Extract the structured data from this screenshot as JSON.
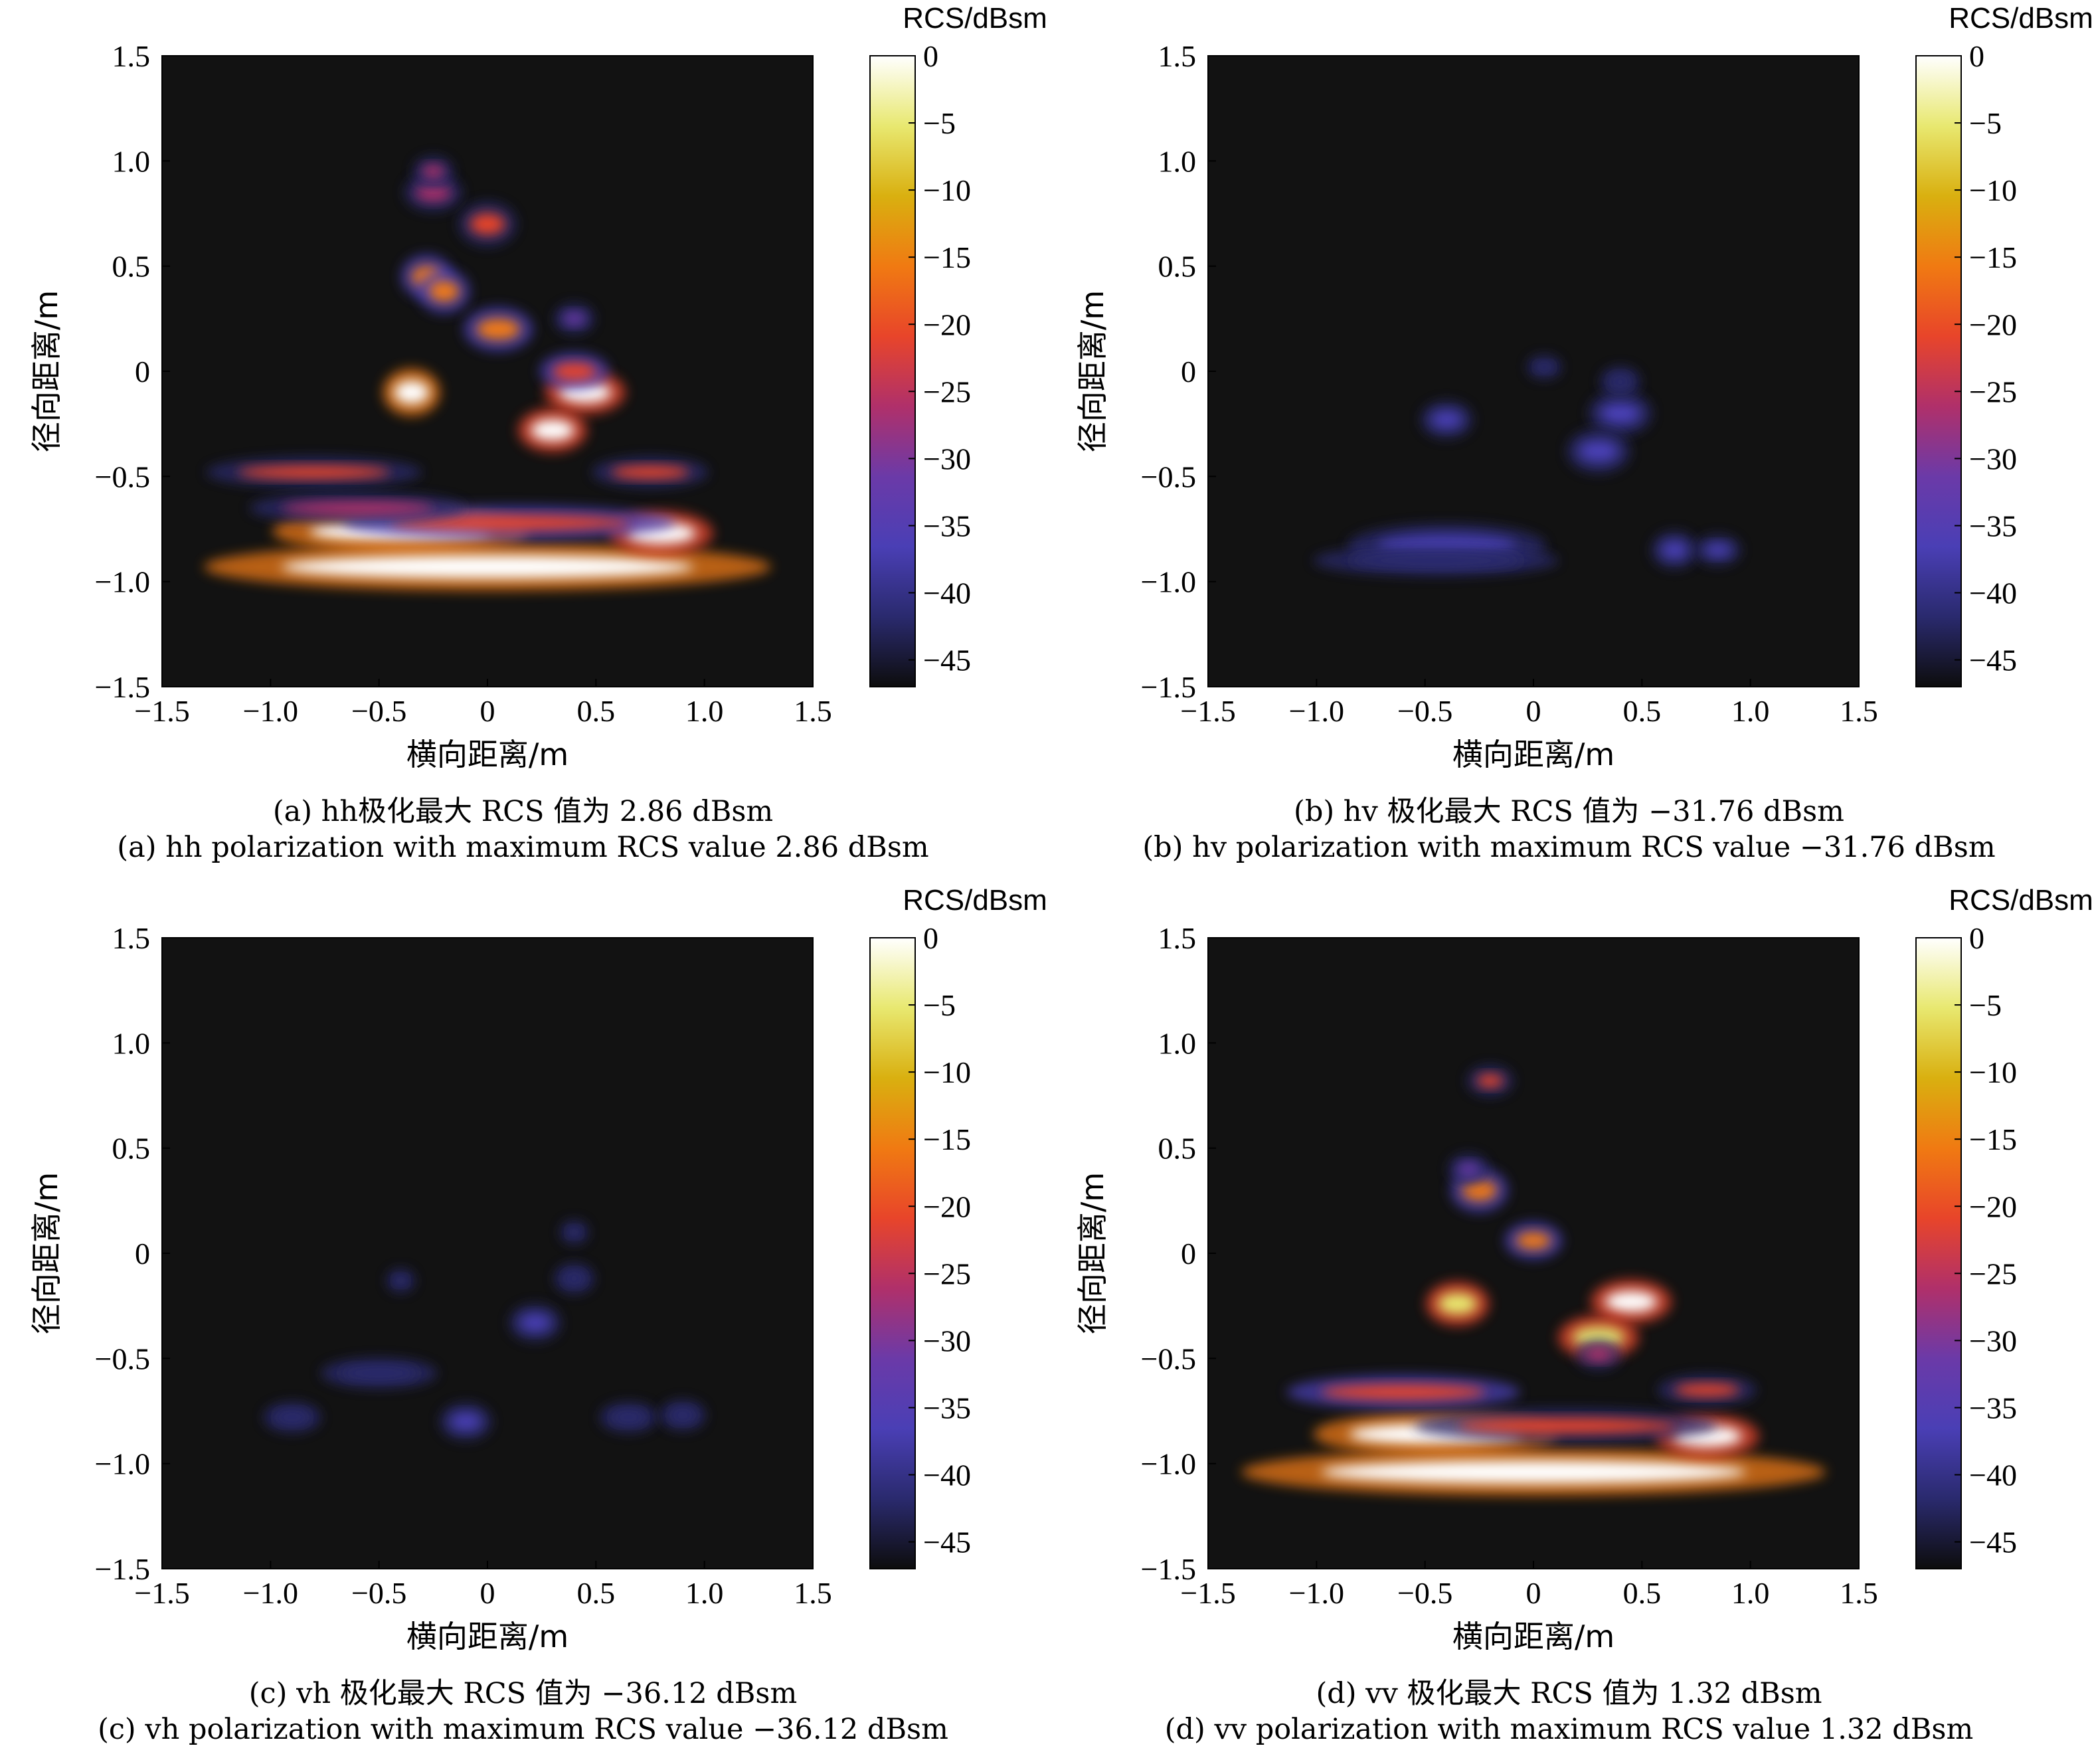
{
  "colors": {
    "background": "#121212",
    "colormap": [
      "#0d0d0d",
      "#2a2a6e",
      "#4a3fb5",
      "#6b3aa8",
      "#b0306a",
      "#e8452a",
      "#f07a12",
      "#d9b010",
      "#e8e870",
      "#ffffff"
    ]
  },
  "chart_data": [
    {
      "id": "a",
      "type": "heatmap",
      "caption_cn": "(a) hh极化最大 RCS 值为 2.86 dBsm",
      "caption_en": "(a) hh polarization with maximum RCS value 2.86 dBsm",
      "xlabel": "横向距离/m",
      "ylabel": "径向距离/m",
      "colorbar_label": "RCS/dBsm",
      "xlim": [
        -1.5,
        1.5
      ],
      "ylim": [
        -1.5,
        1.5
      ],
      "clim": [
        -47,
        0
      ],
      "x_ticks": [
        -1.5,
        -1.0,
        -0.5,
        0,
        0.5,
        1.0,
        1.5
      ],
      "x_tick_labels": [
        "−1.5",
        "−1.0",
        "−0.5",
        "0",
        "0.5",
        "1.0",
        "1.5"
      ],
      "y_ticks": [
        1.5,
        1.0,
        0.5,
        0,
        -0.5,
        -1.0,
        -1.5
      ],
      "y_tick_labels": [
        "1.5",
        "1.0",
        "0.5",
        "0",
        "−0.5",
        "−1.0",
        "−1.5"
      ],
      "colorbar_ticks": [
        0,
        -5,
        -10,
        -15,
        -20,
        -25,
        -30,
        -35,
        -40,
        -45
      ],
      "colorbar_tick_labels": [
        "0",
        "−5",
        "−10",
        "−15",
        "−20",
        "−25",
        "−30",
        "−35",
        "−40",
        "−45"
      ],
      "max_rcs_dbsm": 2.86,
      "scatterers": [
        {
          "x": -0.4,
          "y": -0.76,
          "rx": 0.42,
          "ry": 0.05,
          "db": 0
        },
        {
          "x": 0.0,
          "y": -0.93,
          "rx": 0.95,
          "ry": 0.055,
          "db": -2
        },
        {
          "x": 0.8,
          "y": -0.77,
          "rx": 0.16,
          "ry": 0.05,
          "db": -4
        },
        {
          "x": 0.1,
          "y": -0.72,
          "rx": 0.55,
          "ry": 0.035,
          "db": -22
        },
        {
          "x": -0.8,
          "y": -0.48,
          "rx": 0.35,
          "ry": 0.03,
          "db": -24
        },
        {
          "x": 0.75,
          "y": -0.48,
          "rx": 0.18,
          "ry": 0.03,
          "db": -24
        },
        {
          "x": -0.6,
          "y": -0.65,
          "rx": 0.35,
          "ry": 0.03,
          "db": -28
        },
        {
          "x": -0.35,
          "y": -0.1,
          "rx": 0.08,
          "ry": 0.055,
          "db": -2
        },
        {
          "x": 0.45,
          "y": -0.1,
          "rx": 0.12,
          "ry": 0.05,
          "db": -4
        },
        {
          "x": 0.3,
          "y": -0.28,
          "rx": 0.1,
          "ry": 0.05,
          "db": -4
        },
        {
          "x": 0.4,
          "y": 0.0,
          "rx": 0.1,
          "ry": 0.04,
          "db": -22
        },
        {
          "x": 0.05,
          "y": 0.2,
          "rx": 0.1,
          "ry": 0.05,
          "db": -20
        },
        {
          "x": -0.28,
          "y": 0.45,
          "rx": 0.07,
          "ry": 0.05,
          "db": -20
        },
        {
          "x": -0.2,
          "y": 0.38,
          "rx": 0.07,
          "ry": 0.05,
          "db": -20
        },
        {
          "x": 0.0,
          "y": 0.7,
          "rx": 0.08,
          "ry": 0.05,
          "db": -24
        },
        {
          "x": -0.25,
          "y": 0.85,
          "rx": 0.08,
          "ry": 0.04,
          "db": -28
        },
        {
          "x": -0.25,
          "y": 0.95,
          "rx": 0.05,
          "ry": 0.03,
          "db": -30
        },
        {
          "x": 0.4,
          "y": 0.25,
          "rx": 0.05,
          "ry": 0.03,
          "db": -32
        }
      ]
    },
    {
      "id": "b",
      "type": "heatmap",
      "caption_cn": "(b) hv 极化最大 RCS 值为 −31.76 dBsm",
      "caption_en": "(b) hv polarization with maximum RCS value −31.76 dBsm",
      "xlabel": "横向距离/m",
      "ylabel": "径向距离/m",
      "colorbar_label": "RCS/dBsm",
      "xlim": [
        -1.5,
        1.5
      ],
      "ylim": [
        -1.5,
        1.5
      ],
      "clim": [
        -47,
        0
      ],
      "x_ticks": [
        -1.5,
        -1.0,
        -0.5,
        0,
        0.5,
        1.0,
        1.5
      ],
      "x_tick_labels": [
        "−1.5",
        "−1.0",
        "−0.5",
        "0",
        "0.5",
        "1.0",
        "1.5"
      ],
      "y_ticks": [
        1.5,
        1.0,
        0.5,
        0,
        -0.5,
        -1.0,
        -1.5
      ],
      "y_tick_labels": [
        "1.5",
        "1.0",
        "0.5",
        "0",
        "−0.5",
        "−1.0",
        "−1.5"
      ],
      "colorbar_ticks": [
        0,
        -5,
        -10,
        -15,
        -20,
        -25,
        -30,
        -35,
        -40,
        -45
      ],
      "colorbar_tick_labels": [
        "0",
        "−5",
        "−10",
        "−15",
        "−20",
        "−25",
        "−30",
        "−35",
        "−40",
        "−45"
      ],
      "max_rcs_dbsm": -31.76,
      "scatterers": [
        {
          "x": -0.4,
          "y": -0.83,
          "rx": 0.32,
          "ry": 0.05,
          "db": -38
        },
        {
          "x": -0.45,
          "y": -0.9,
          "rx": 0.4,
          "ry": 0.03,
          "db": -43
        },
        {
          "x": 0.65,
          "y": -0.85,
          "rx": 0.06,
          "ry": 0.04,
          "db": -39
        },
        {
          "x": 0.85,
          "y": -0.85,
          "rx": 0.06,
          "ry": 0.03,
          "db": -40
        },
        {
          "x": 0.4,
          "y": -0.2,
          "rx": 0.09,
          "ry": 0.05,
          "db": -37
        },
        {
          "x": 0.3,
          "y": -0.38,
          "rx": 0.09,
          "ry": 0.05,
          "db": -38
        },
        {
          "x": -0.4,
          "y": -0.23,
          "rx": 0.07,
          "ry": 0.04,
          "db": -40
        },
        {
          "x": 0.4,
          "y": -0.05,
          "rx": 0.05,
          "ry": 0.03,
          "db": -42
        },
        {
          "x": 0.05,
          "y": 0.02,
          "rx": 0.04,
          "ry": 0.02,
          "db": -43
        }
      ]
    },
    {
      "id": "c",
      "type": "heatmap",
      "caption_cn": "(c) vh 极化最大 RCS 值为 −36.12 dBsm",
      "caption_en": "(c) vh polarization with maximum RCS value −36.12 dBsm",
      "xlabel": "横向距离/m",
      "ylabel": "径向距离/m",
      "colorbar_label": "RCS/dBsm",
      "xlim": [
        -1.5,
        1.5
      ],
      "ylim": [
        -1.5,
        1.5
      ],
      "clim": [
        -47,
        0
      ],
      "x_ticks": [
        -1.5,
        -1.0,
        -0.5,
        0,
        0.5,
        1.0,
        1.5
      ],
      "x_tick_labels": [
        "−1.5",
        "−1.0",
        "−0.5",
        "0",
        "0.5",
        "1.0",
        "1.5"
      ],
      "y_ticks": [
        1.5,
        1.0,
        0.5,
        0,
        -0.5,
        -1.0,
        -1.5
      ],
      "y_tick_labels": [
        "1.5",
        "1.0",
        "0.5",
        "0",
        "−0.5",
        "−1.0",
        "−1.5"
      ],
      "colorbar_ticks": [
        0,
        -5,
        -10,
        -15,
        -20,
        -25,
        -30,
        -35,
        -40,
        -45
      ],
      "colorbar_tick_labels": [
        "0",
        "−5",
        "−10",
        "−15",
        "−20",
        "−25",
        "−30",
        "−35",
        "−40",
        "−45"
      ],
      "max_rcs_dbsm": -36.12,
      "scatterers": [
        {
          "x": 0.22,
          "y": -0.33,
          "rx": 0.07,
          "ry": 0.04,
          "db": -40
        },
        {
          "x": 0.4,
          "y": -0.12,
          "rx": 0.05,
          "ry": 0.03,
          "db": -42
        },
        {
          "x": 0.4,
          "y": 0.1,
          "rx": 0.03,
          "ry": 0.02,
          "db": -43
        },
        {
          "x": -0.1,
          "y": -0.8,
          "rx": 0.07,
          "ry": 0.04,
          "db": -41
        },
        {
          "x": -0.9,
          "y": -0.78,
          "rx": 0.08,
          "ry": 0.03,
          "db": -42
        },
        {
          "x": 0.65,
          "y": -0.78,
          "rx": 0.08,
          "ry": 0.03,
          "db": -42
        },
        {
          "x": 0.9,
          "y": -0.77,
          "rx": 0.06,
          "ry": 0.03,
          "db": -42
        },
        {
          "x": -0.5,
          "y": -0.57,
          "rx": 0.18,
          "ry": 0.03,
          "db": -44
        },
        {
          "x": -0.4,
          "y": -0.13,
          "rx": 0.03,
          "ry": 0.02,
          "db": -44
        }
      ]
    },
    {
      "id": "d",
      "type": "heatmap",
      "caption_cn": "(d) vv 极化最大 RCS 值为 1.32 dBsm",
      "caption_en": "(d) vv polarization with maximum RCS value 1.32 dBsm",
      "xlabel": "横向距离/m",
      "ylabel": "径向距离/m",
      "colorbar_label": "RCS/dBsm",
      "xlim": [
        -1.5,
        1.5
      ],
      "ylim": [
        -1.5,
        1.5
      ],
      "clim": [
        -47,
        0
      ],
      "x_ticks": [
        -1.5,
        -1.0,
        -0.5,
        0,
        0.5,
        1.0,
        1.5
      ],
      "x_tick_labels": [
        "−1.5",
        "−1.0",
        "−0.5",
        "0",
        "0.5",
        "1.0",
        "1.5"
      ],
      "y_ticks": [
        1.5,
        1.0,
        0.5,
        0,
        -0.5,
        -1.0,
        -1.5
      ],
      "y_tick_labels": [
        "1.5",
        "1.0",
        "0.5",
        "0",
        "−0.5",
        "−1.0",
        "−1.5"
      ],
      "colorbar_ticks": [
        0,
        -5,
        -10,
        -15,
        -20,
        -25,
        -30,
        -35,
        -40,
        -45
      ],
      "colorbar_tick_labels": [
        "0",
        "−5",
        "−10",
        "−15",
        "−20",
        "−25",
        "−30",
        "−35",
        "−40",
        "−45"
      ],
      "max_rcs_dbsm": 1.32,
      "scatterers": [
        {
          "x": -0.45,
          "y": -0.86,
          "rx": 0.4,
          "ry": 0.05,
          "db": 0
        },
        {
          "x": 0.0,
          "y": -1.04,
          "rx": 0.98,
          "ry": 0.055,
          "db": -2
        },
        {
          "x": 0.8,
          "y": -0.87,
          "rx": 0.16,
          "ry": 0.05,
          "db": -4
        },
        {
          "x": 0.15,
          "y": -0.82,
          "rx": 0.5,
          "ry": 0.035,
          "db": -24
        },
        {
          "x": -0.6,
          "y": -0.66,
          "rx": 0.38,
          "ry": 0.035,
          "db": -22
        },
        {
          "x": 0.8,
          "y": -0.65,
          "rx": 0.15,
          "ry": 0.03,
          "db": -26
        },
        {
          "x": -0.35,
          "y": -0.24,
          "rx": 0.09,
          "ry": 0.05,
          "db": -6
        },
        {
          "x": 0.45,
          "y": -0.23,
          "rx": 0.12,
          "ry": 0.05,
          "db": -4
        },
        {
          "x": 0.3,
          "y": -0.4,
          "rx": 0.12,
          "ry": 0.05,
          "db": -8
        },
        {
          "x": 0.3,
          "y": -0.48,
          "rx": 0.06,
          "ry": 0.03,
          "db": -28
        },
        {
          "x": 0.0,
          "y": 0.06,
          "rx": 0.08,
          "ry": 0.04,
          "db": -20
        },
        {
          "x": -0.25,
          "y": 0.3,
          "rx": 0.08,
          "ry": 0.05,
          "db": -20
        },
        {
          "x": -0.2,
          "y": 0.82,
          "rx": 0.06,
          "ry": 0.03,
          "db": -24
        },
        {
          "x": -0.3,
          "y": 0.4,
          "rx": 0.05,
          "ry": 0.03,
          "db": -32
        }
      ]
    }
  ]
}
